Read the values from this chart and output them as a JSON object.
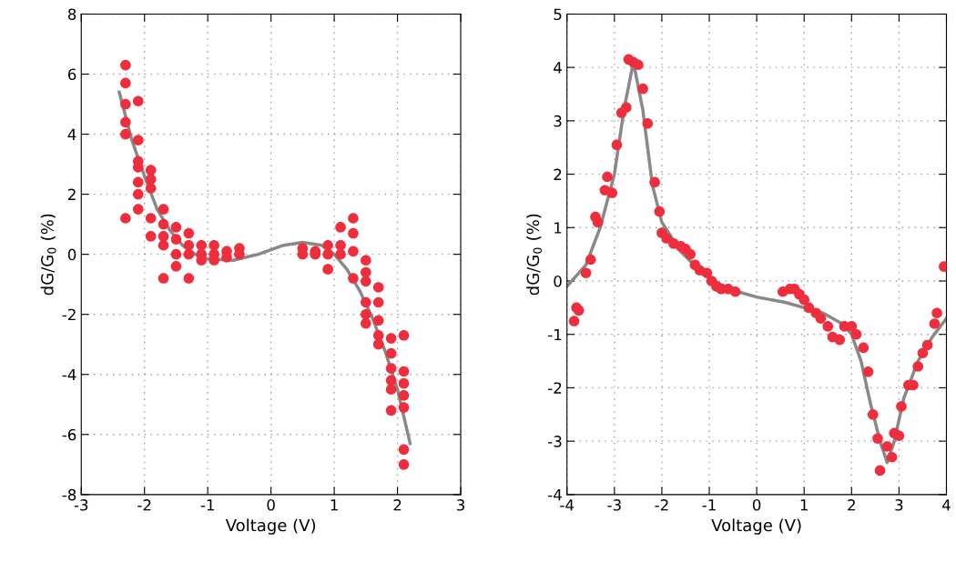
{
  "chart_data": [
    {
      "type": "scatter",
      "xlabel": "Voltage (V)",
      "ylabel": "dG/G$_{0}$ (%)",
      "xlim": [
        -3,
        3
      ],
      "ylim": [
        -8,
        8
      ],
      "xticks": [
        -3,
        -2,
        -1,
        0,
        1,
        2,
        3
      ],
      "yticks": [
        -8,
        -6,
        -4,
        -2,
        0,
        2,
        4,
        6,
        8
      ],
      "grid": true,
      "series": [
        {
          "marker": "circle",
          "color": "#ee2e3c",
          "x": [
            -2.3,
            -2.3,
            -2.3,
            -2.3,
            -2.3,
            -2.3,
            -2.1,
            -2.1,
            -2.1,
            -2.1,
            -2.1,
            -2.1,
            -2.1,
            -1.9,
            -1.9,
            -1.9,
            -1.9,
            -1.9,
            -1.7,
            -1.7,
            -1.7,
            -1.7,
            -1.7,
            -1.5,
            -1.5,
            -1.5,
            -1.5,
            -1.3,
            -1.3,
            -1.3,
            -1.3,
            -1.1,
            -1.1,
            -1.1,
            -0.9,
            -0.9,
            -0.9,
            -0.7,
            -0.7,
            -0.5,
            -0.5,
            0.5,
            0.5,
            0.7,
            0.7,
            0.9,
            0.9,
            0.9,
            1.1,
            1.1,
            1.1,
            1.3,
            1.3,
            1.3,
            1.3,
            1.5,
            1.5,
            1.5,
            1.5,
            1.5,
            1.5,
            1.7,
            1.7,
            1.7,
            1.7,
            1.7,
            1.9,
            1.9,
            1.9,
            1.9,
            1.9,
            1.9,
            2.1,
            2.1,
            2.1,
            2.1,
            2.1,
            2.1,
            2.1
          ],
          "values": [
            6.3,
            5.7,
            5.0,
            4.4,
            4.0,
            1.2,
            5.1,
            3.8,
            3.1,
            2.9,
            2.4,
            2.0,
            1.5,
            2.8,
            2.5,
            2.2,
            1.2,
            0.6,
            1.5,
            1.0,
            0.6,
            0.3,
            -0.8,
            0.9,
            0.5,
            0.0,
            -0.4,
            0.7,
            0.3,
            0.0,
            -0.8,
            0.3,
            0.0,
            -0.2,
            0.3,
            0.0,
            -0.2,
            0.1,
            -0.1,
            0.2,
            0.0,
            0.2,
            0.0,
            0.1,
            0.0,
            0.3,
            0.0,
            -0.5,
            0.9,
            0.3,
            0.0,
            1.2,
            0.7,
            0.1,
            -0.8,
            -0.2,
            -0.6,
            -0.9,
            -1.6,
            -2.0,
            -2.3,
            -1.1,
            -1.6,
            -2.2,
            -2.7,
            -3.0,
            -2.8,
            -3.3,
            -3.8,
            -4.2,
            -4.5,
            -5.2,
            -2.7,
            -3.9,
            -4.3,
            -4.7,
            -5.1,
            -6.5,
            -7.0
          ]
        },
        {
          "type": "line",
          "color": "#888888",
          "x": [
            -2.4,
            -2.2,
            -2.0,
            -1.8,
            -1.6,
            -1.4,
            -1.2,
            -1.0,
            -0.6,
            -0.2,
            0.2,
            0.5,
            0.8,
            1.0,
            1.2,
            1.4,
            1.6,
            1.8,
            2.0,
            2.2
          ],
          "values": [
            5.4,
            3.8,
            2.6,
            1.5,
            0.8,
            0.3,
            0.0,
            -0.15,
            -0.2,
            0.0,
            0.3,
            0.4,
            0.3,
            0.0,
            -0.5,
            -1.2,
            -2.1,
            -3.2,
            -4.5,
            -6.3
          ]
        }
      ]
    },
    {
      "type": "scatter",
      "xlabel": "Voltage (V)",
      "ylabel": "dG/G$_{0}$ (%)",
      "xlim": [
        -4,
        4
      ],
      "ylim": [
        -4,
        5
      ],
      "xticks": [
        -4,
        -3,
        -2,
        -1,
        0,
        1,
        2,
        3,
        4
      ],
      "yticks": [
        -4,
        -3,
        -2,
        -1,
        0,
        1,
        2,
        3,
        4,
        5
      ],
      "grid": true,
      "series": [
        {
          "marker": "circle",
          "color": "#ee2e3c",
          "x": [
            -3.85,
            -3.8,
            -3.75,
            -3.6,
            -3.5,
            -3.4,
            -3.35,
            -3.2,
            -3.15,
            -3.05,
            -2.95,
            -2.85,
            -2.75,
            -2.7,
            -2.6,
            -2.5,
            -2.4,
            -2.3,
            -2.15,
            -2.05,
            -2.0,
            -1.9,
            -1.75,
            -1.6,
            -1.5,
            -1.4,
            -1.3,
            -1.2,
            -1.05,
            -0.95,
            -0.85,
            -0.75,
            -0.6,
            -0.45,
            0.55,
            0.7,
            0.8,
            0.9,
            1.0,
            1.1,
            1.25,
            1.35,
            1.5,
            1.6,
            1.75,
            1.85,
            2.0,
            2.1,
            2.25,
            2.35,
            2.45,
            2.55,
            2.6,
            2.75,
            2.85,
            2.9,
            3.0,
            3.05,
            3.2,
            3.3,
            3.4,
            3.5,
            3.6,
            3.75,
            3.8,
            3.95
          ],
          "values": [
            -0.75,
            -0.5,
            -0.55,
            0.15,
            0.4,
            1.2,
            1.1,
            1.7,
            1.95,
            1.65,
            2.55,
            3.15,
            3.25,
            4.15,
            4.1,
            4.05,
            3.6,
            2.95,
            1.85,
            1.3,
            0.9,
            0.8,
            0.7,
            0.65,
            0.6,
            0.5,
            0.3,
            0.2,
            0.15,
            0.0,
            -0.1,
            -0.15,
            -0.15,
            -0.2,
            -0.2,
            -0.15,
            -0.15,
            -0.25,
            -0.35,
            -0.5,
            -0.6,
            -0.7,
            -0.85,
            -1.05,
            -1.1,
            -0.85,
            -0.85,
            -1.0,
            -1.25,
            -1.7,
            -2.5,
            -2.95,
            -3.55,
            -3.1,
            -3.3,
            -2.85,
            -2.9,
            -2.35,
            -1.95,
            -1.95,
            -1.6,
            -1.35,
            -1.2,
            -0.8,
            -0.6,
            0.27
          ]
        },
        {
          "type": "line",
          "color": "#888888",
          "x": [
            -4.0,
            -3.6,
            -3.3,
            -3.0,
            -2.8,
            -2.6,
            -2.4,
            -2.2,
            -2.0,
            -1.6,
            -1.2,
            -0.8,
            -0.4,
            0.0,
            0.6,
            1.0,
            1.4,
            1.8,
            2.0,
            2.2,
            2.4,
            2.6,
            2.75,
            2.9,
            3.1,
            3.4,
            3.7,
            4.0
          ],
          "values": [
            -0.1,
            0.3,
            1.0,
            2.0,
            3.2,
            4.1,
            3.2,
            1.8,
            1.1,
            0.55,
            0.2,
            -0.05,
            -0.2,
            -0.3,
            -0.4,
            -0.5,
            -0.6,
            -0.8,
            -1.0,
            -1.5,
            -2.3,
            -3.0,
            -3.4,
            -3.0,
            -2.2,
            -1.5,
            -1.05,
            -0.7
          ]
        }
      ]
    }
  ]
}
